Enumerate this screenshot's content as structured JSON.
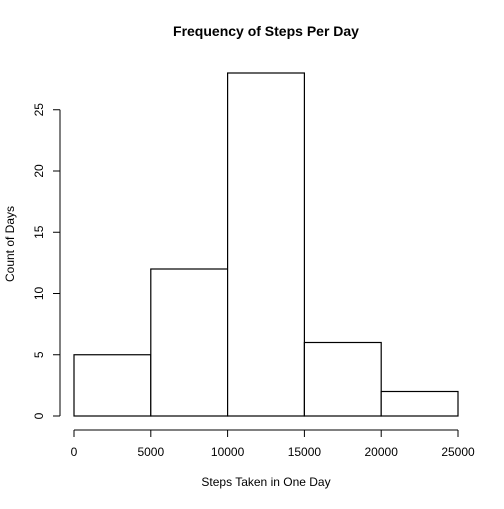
{
  "chart_data": {
    "type": "bar",
    "title": "Frequency of Steps Per Day",
    "xlabel": "Steps Taken in One Day",
    "ylabel": "Count of Days",
    "bins": [
      {
        "x0": 0,
        "x1": 5000,
        "count": 5
      },
      {
        "x0": 5000,
        "x1": 10000,
        "count": 12
      },
      {
        "x0": 10000,
        "x1": 15000,
        "count": 28
      },
      {
        "x0": 15000,
        "x1": 20000,
        "count": 6
      },
      {
        "x0": 20000,
        "x1": 25000,
        "count": 2
      }
    ],
    "xlim": [
      0,
      25000
    ],
    "ylim": [
      0,
      28
    ],
    "x_ticks": [
      0,
      5000,
      10000,
      15000,
      20000,
      25000
    ],
    "x_tick_labels": [
      "0",
      "5000",
      "10000",
      "15000",
      "20000",
      "25000"
    ],
    "y_ticks": [
      0,
      5,
      10,
      15,
      20,
      25
    ],
    "y_tick_labels": [
      "0",
      "5",
      "10",
      "15",
      "20",
      "25"
    ],
    "grid": false,
    "legend": "none"
  }
}
